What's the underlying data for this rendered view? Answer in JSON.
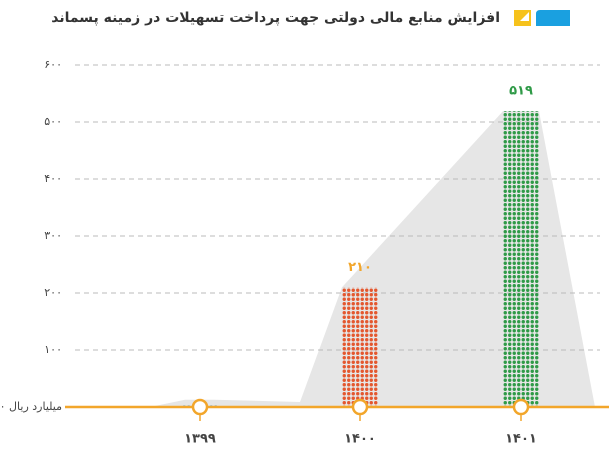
{
  "chart_data": {
    "type": "bar",
    "title": "افزایش منابع مالی دولتی جهت پرداخت تسهیلات در زمینه پسماند",
    "categories": [
      "۱۳۹۹",
      "۱۴۰۰",
      "۱۴۰۱"
    ],
    "values": [
      4,
      210,
      519
    ],
    "value_labels": [
      null,
      "۲۱۰",
      "۵۱۹"
    ],
    "colors": [
      "#1f7fc4",
      "#e4572e",
      "#2f9a47"
    ],
    "label_colors": [
      null,
      "#f2a62b",
      "#2f9a47"
    ],
    "ylim": [
      0,
      600
    ],
    "yticks": [
      {
        "value": 0,
        "label": "۰ میلیارد ریال"
      },
      {
        "value": 100,
        "label": "۱۰۰"
      },
      {
        "value": 200,
        "label": "۲۰۰"
      },
      {
        "value": 300,
        "label": "۳۰۰"
      },
      {
        "value": 400,
        "label": "۴۰۰"
      },
      {
        "value": 500,
        "label": "۵۰۰"
      },
      {
        "value": 600,
        "label": "۶۰۰"
      }
    ],
    "grid": true
  }
}
